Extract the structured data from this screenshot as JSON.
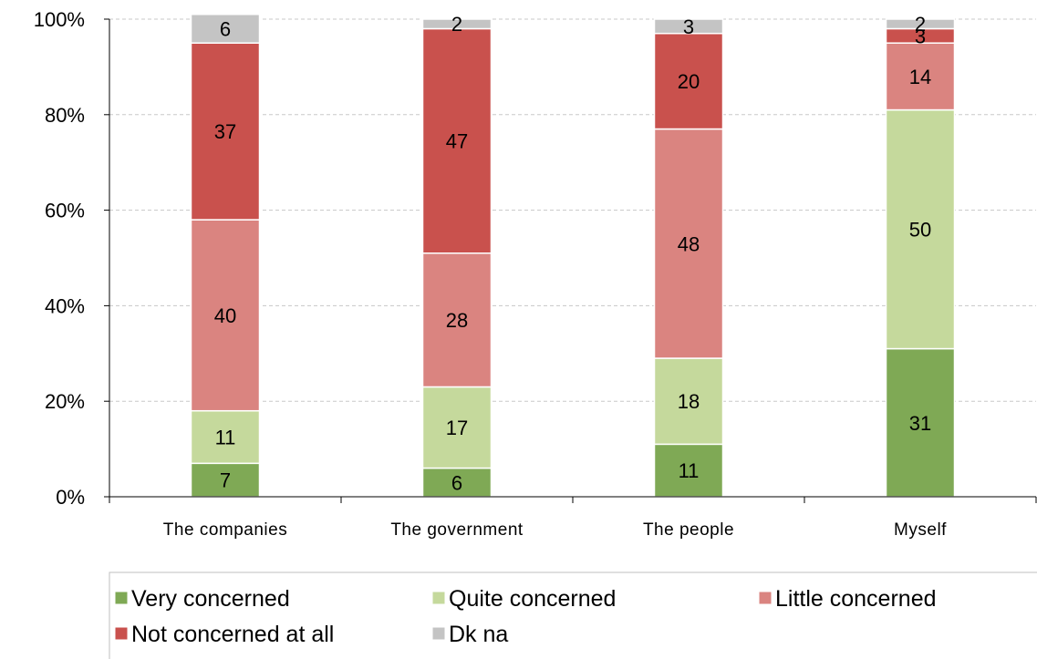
{
  "chart_data": {
    "type": "bar",
    "stacked": true,
    "categories": [
      "The companies",
      "The government",
      "The people",
      "Myself"
    ],
    "series": [
      {
        "name": "Very concerned",
        "color": "#7fa955",
        "values": [
          7,
          6,
          11,
          31
        ]
      },
      {
        "name": "Quite concerned",
        "color": "#c5d99c",
        "values": [
          11,
          17,
          18,
          50
        ]
      },
      {
        "name": "Little concerned",
        "color": "#da8480",
        "values": [
          40,
          28,
          48,
          14
        ]
      },
      {
        "name": "Not concerned at all",
        "color": "#c9514d",
        "values": [
          37,
          47,
          20,
          3
        ]
      },
      {
        "name": "Dk na",
        "color": "#c4c4c4",
        "values": [
          6,
          2,
          3,
          2
        ]
      }
    ],
    "y_ticks": [
      "0%",
      "20%",
      "40%",
      "60%",
      "80%",
      "100%"
    ],
    "ylim": [
      0,
      100
    ],
    "grid": true,
    "legend_position": "bottom"
  }
}
